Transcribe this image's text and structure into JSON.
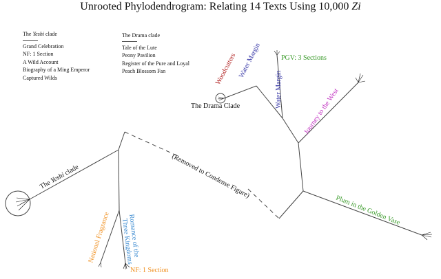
{
  "title": {
    "prefix": "Unrooted Phylodendrogram: Relating 14 Texts Using 10,000 ",
    "emphasis": "Zi"
  },
  "legend_yeshi": {
    "head_italic": "Yeshi",
    "head_rest": " clade",
    "items": [
      "Grand Celebration",
      "NF: 1 Section",
      "A Wild Account",
      "Biography of a Ming Emperor",
      "Captured Wilds"
    ]
  },
  "legend_drama": {
    "head": "The Drama clade",
    "items": [
      "Tale of the Lute",
      "Peony Pavilion",
      "Register of the Pure and Loyal",
      "Peach Blossom Fan"
    ]
  },
  "labels": {
    "pgv": "PGV: 3 Sections",
    "water_margin_a": "Water Margin",
    "water_margin_b": "Water Margin",
    "woodcutters": "Woodcutters",
    "drama_clade": "The Drama Clade",
    "journey": "Journey to the West",
    "removed": "(Removed to Condense Figure)",
    "yeshi_pre": "The ",
    "yeshi_italic": "Yeshi",
    "yeshi_post": " clade",
    "national_fragrance": "National Fragrance",
    "romance_line1": "Romance of the",
    "romance_line2": "Three Kingdoms",
    "nf": "NF: 1 Section",
    "plum": "Plum in the Golden Vase"
  },
  "colors": {
    "pgv": "#3a9a2a",
    "water_margin": "#3a3aa8",
    "woodcutters": "#b02020",
    "journey": "#c030c0",
    "national_fragrance": "#f09020",
    "romance": "#3a8ad0",
    "nf": "#f09020",
    "plum": "#3a9a2a",
    "branch": "#444444"
  }
}
